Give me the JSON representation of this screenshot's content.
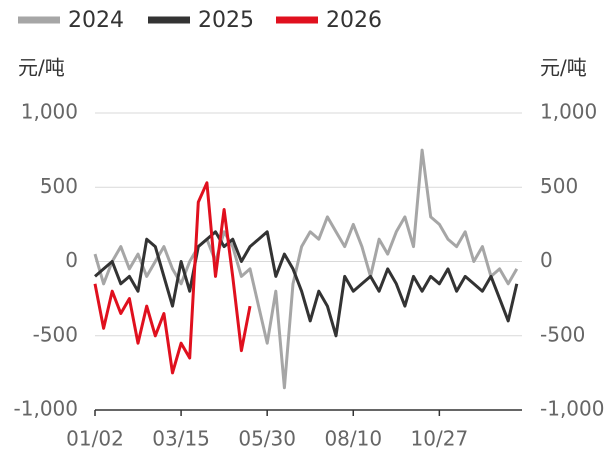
{
  "chart_data": {
    "type": "line",
    "y_unit": "元/吨",
    "y2_unit": "元/吨",
    "x": [
      0,
      5,
      10,
      15,
      20,
      25,
      30,
      35,
      40,
      45,
      50,
      55,
      60,
      65,
      70,
      75,
      80,
      85,
      90,
      95,
      100,
      105,
      110,
      115,
      120,
      125,
      130,
      135,
      140,
      145,
      150,
      155,
      160,
      165,
      170,
      175,
      180,
      185,
      190,
      195,
      200,
      205,
      210,
      215,
      220,
      225,
      230,
      235,
      240,
      245
    ],
    "xlim": [
      0,
      248
    ],
    "xticks": [
      {
        "value": 0,
        "label": "01/02"
      },
      {
        "value": 50,
        "label": "03/15"
      },
      {
        "value": 100,
        "label": "05/30"
      },
      {
        "value": 150,
        "label": "08/10"
      },
      {
        "value": 200,
        "label": "10/27"
      }
    ],
    "ylim": [
      -1000,
      1000
    ],
    "yticks": [
      {
        "value": -1000,
        "label": "-1,000"
      },
      -500,
      0,
      500,
      {
        "value": 1000,
        "label": "1,000"
      }
    ],
    "y2lim": [
      -1000,
      1000
    ],
    "y2ticks": [
      {
        "value": -1000,
        "label": "-1,000"
      },
      -500,
      0,
      500,
      {
        "value": 1000,
        "label": "1,000"
      }
    ],
    "grid": true,
    "legend": "top-left",
    "series": [
      {
        "name": "2024",
        "color": "#a6a6a6",
        "values": [
          50,
          -150,
          0,
          100,
          -50,
          50,
          -100,
          0,
          100,
          -50,
          -150,
          0,
          100,
          150,
          0,
          200,
          100,
          -100,
          -50,
          -300,
          -550,
          -200,
          -850,
          -150,
          100,
          200,
          150,
          300,
          200,
          100,
          250,
          100,
          -100,
          150,
          50,
          200,
          300,
          100,
          750,
          300,
          250,
          150,
          100,
          200,
          0,
          100,
          -100,
          -50,
          -150,
          -50
        ]
      },
      {
        "name": "2025",
        "color": "#333333",
        "values": [
          -100,
          -50,
          0,
          -150,
          -100,
          -200,
          150,
          100,
          -100,
          -300,
          0,
          -200,
          100,
          150,
          200,
          100,
          150,
          0,
          100,
          150,
          200,
          -100,
          50,
          -50,
          -200,
          -400,
          -200,
          -300,
          -500,
          -100,
          -200,
          -150,
          -100,
          -200,
          -50,
          -150,
          -300,
          -100,
          -200,
          -100,
          -150,
          -50,
          -200,
          -100,
          -150,
          -200,
          -100,
          -250,
          -400,
          -150
        ]
      },
      {
        "name": "2026",
        "color": "#e0101e",
        "values": [
          -150,
          -450,
          -200,
          -350,
          -250,
          -550,
          -300,
          -500,
          -350,
          -750,
          -550,
          -650,
          400,
          530,
          -100,
          350,
          -100,
          -600,
          -300,
          null,
          null,
          null,
          null,
          null,
          null,
          null,
          null,
          null,
          null,
          null,
          null,
          null,
          null,
          null,
          null,
          null,
          null,
          null,
          null,
          null,
          null,
          null,
          null,
          null,
          null,
          null,
          null,
          null,
          null,
          null
        ]
      }
    ]
  }
}
